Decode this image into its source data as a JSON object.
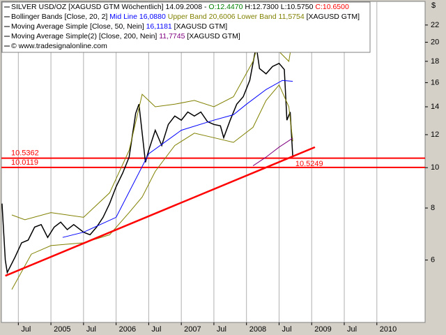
{
  "chart_data": {
    "type": "line",
    "title": "SILVER USD/OZ",
    "currency": "$",
    "log_scale": true,
    "grid": true,
    "xlim": [
      2004.24,
      2010.74
    ],
    "ylim": [
      4.25,
      25.07
    ],
    "xticks": [
      {
        "value": 2004.5,
        "label": "Jul"
      },
      {
        "value": 2005.0,
        "label": "2005"
      },
      {
        "value": 2005.5,
        "label": "Jul"
      },
      {
        "value": 2006.0,
        "label": "2006"
      },
      {
        "value": 2006.5,
        "label": "Jul"
      },
      {
        "value": 2007.0,
        "label": "2007"
      },
      {
        "value": 2007.5,
        "label": "Jul"
      },
      {
        "value": 2008.0,
        "label": "2008"
      },
      {
        "value": 2008.5,
        "label": "Jul"
      },
      {
        "value": 2009.0,
        "label": "2009"
      },
      {
        "value": 2009.5,
        "label": "Jul"
      },
      {
        "value": 2010.0,
        "label": "2010"
      }
    ],
    "yticks": [
      6,
      8,
      10,
      12,
      14,
      16,
      18,
      20,
      22
    ],
    "legend": [
      [
        {
          "text": "SILVER USD/OZ [XAGUSD GTM  Wöchentlich] 14.09.2008 - ",
          "color": "#000000"
        },
        {
          "text": "O:12.4470",
          "color": "#008000"
        },
        {
          "text": " H:12.7300 L:10.5750 ",
          "color": "#000000"
        },
        {
          "text": "C:10.6500",
          "color": "#ff0000"
        }
      ],
      [
        {
          "text": "Bollinger Bands [Close, 20, 2] ",
          "color": "#000000"
        },
        {
          "text": "Mid Line 16,0880",
          "color": "#0000ff"
        },
        {
          "text": " Upper Band 20,6006 Lower Band 11,5754",
          "color": "#808000"
        },
        {
          "text": " [XAGUSD GTM]",
          "color": "#000000"
        }
      ],
      [
        {
          "text": "Moving Average Simple [Close, 50, Nein] ",
          "color": "#000000"
        },
        {
          "text": "16,1181",
          "color": "#0000ff"
        },
        {
          "text": " [XAGUSD GTM]",
          "color": "#000000"
        }
      ],
      [
        {
          "text": "Moving Average Simple(2) [Close, 200, Nein] ",
          "color": "#000000"
        },
        {
          "text": "11,7745",
          "color": "#800080"
        },
        {
          "text": " [XAGUSD GTM]",
          "color": "#000000"
        }
      ],
      [
        {
          "text": "© www.tradesignalonline.com",
          "color": "#000000"
        }
      ]
    ],
    "series": [
      {
        "name": "SILVER USD/OZ",
        "color": "#000000",
        "x": [
          2004.25,
          2004.3,
          2004.33,
          2004.45,
          2004.55,
          2004.65,
          2004.75,
          2004.85,
          2004.95,
          2005.05,
          2005.15,
          2005.25,
          2005.35,
          2005.5,
          2005.6,
          2005.7,
          2005.8,
          2005.9,
          2006.0,
          2006.1,
          2006.2,
          2006.3,
          2006.35,
          2006.45,
          2006.5,
          2006.6,
          2006.7,
          2006.8,
          2006.9,
          2007.0,
          2007.1,
          2007.2,
          2007.3,
          2007.4,
          2007.5,
          2007.6,
          2007.65,
          2007.75,
          2007.85,
          2007.95,
          2008.05,
          2008.15,
          2008.2,
          2008.3,
          2008.4,
          2008.5,
          2008.58,
          2008.62,
          2008.67,
          2008.71
        ],
        "values": [
          8.2,
          6.0,
          5.6,
          6.1,
          6.6,
          6.7,
          7.2,
          7.3,
          6.8,
          7.2,
          7.4,
          7.1,
          7.3,
          7.0,
          6.9,
          7.2,
          7.6,
          8.2,
          9.0,
          9.7,
          10.6,
          13.5,
          14.2,
          10.3,
          11.0,
          12.3,
          11.3,
          12.7,
          13.3,
          13.0,
          13.6,
          13.3,
          13.6,
          12.9,
          12.7,
          12.6,
          11.8,
          13.0,
          14.2,
          14.8,
          16.2,
          19.6,
          17.3,
          16.8,
          17.5,
          17.8,
          17.2,
          13.0,
          13.6,
          10.65
        ]
      },
      {
        "name": "Upper Band",
        "color": "#808000",
        "x": [
          2004.4,
          2004.6,
          2005.0,
          2005.5,
          2005.9,
          2006.2,
          2006.4,
          2006.6,
          2006.9,
          2007.2,
          2007.5,
          2007.8,
          2008.1,
          2008.25,
          2008.5,
          2008.65,
          2008.71
        ],
        "values": [
          7.7,
          7.5,
          7.8,
          7.6,
          8.7,
          11,
          15,
          14,
          14.2,
          14.5,
          14,
          14.8,
          18,
          21.5,
          19,
          18,
          20.6006
        ]
      },
      {
        "name": "Lower Band",
        "color": "#808000",
        "x": [
          2004.4,
          2004.7,
          2005.0,
          2005.5,
          2005.9,
          2006.2,
          2006.4,
          2006.6,
          2006.9,
          2007.2,
          2007.5,
          2007.8,
          2008.1,
          2008.3,
          2008.5,
          2008.65,
          2008.71
        ],
        "values": [
          5.1,
          6.2,
          6.5,
          6.6,
          6.9,
          7.8,
          8.5,
          9.8,
          11.3,
          12.1,
          11.8,
          11.5,
          12.5,
          14.5,
          15.8,
          14,
          11.5754
        ]
      },
      {
        "name": "Moving Average Simple",
        "color": "#0000ff",
        "x": [
          2005.18,
          2005.5,
          2006.0,
          2006.5,
          2007.0,
          2007.5,
          2007.8,
          2008.0,
          2008.3,
          2008.55,
          2008.71
        ],
        "values": [
          6.8,
          7.0,
          7.6,
          10.8,
          12.3,
          13.0,
          13.4,
          14.2,
          15.4,
          16.2,
          16.1181
        ]
      },
      {
        "name": "Moving Average Simple(2)",
        "color": "#800080",
        "x": [
          2008.1,
          2008.3,
          2008.5,
          2008.71
        ],
        "values": [
          10.1,
          10.6,
          11.2,
          11.7745
        ]
      }
    ],
    "hlines": [
      {
        "value": 10.5362,
        "label": "10.5362",
        "color": "#ff0000"
      },
      {
        "value": 10.0119,
        "label": "10.0119",
        "color": "#ff0000"
      }
    ],
    "trendline": {
      "x": [
        2004.3,
        2009.05
      ],
      "values": [
        5.5,
        11.2
      ],
      "label": "10.5249",
      "label_x": 2008.75,
      "label_value": 10.5249,
      "color": "#ff0000"
    }
  }
}
